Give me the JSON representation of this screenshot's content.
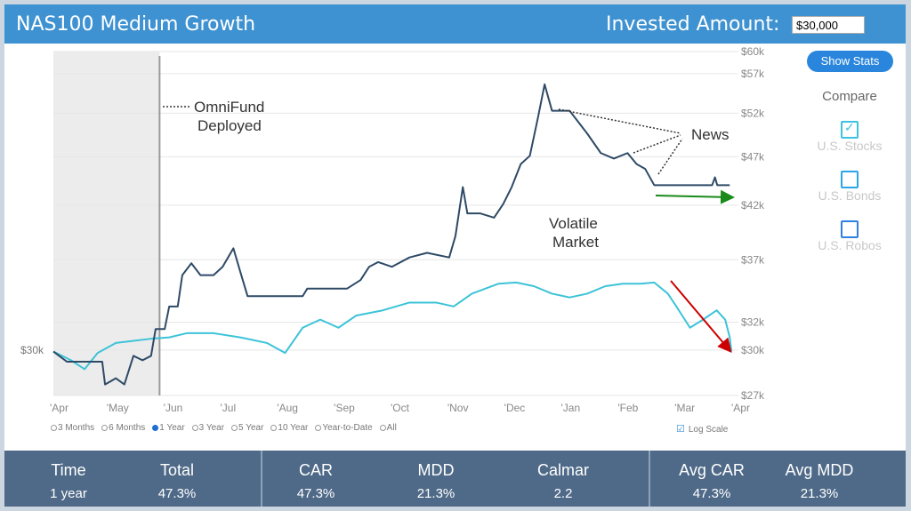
{
  "header": {
    "title": "NAS100 Medium Growth",
    "invested_label": "Invested Amount:",
    "invested_value": "$30,000"
  },
  "sidebar": {
    "show_stats": "Show Stats",
    "compare": "Compare",
    "options": [
      {
        "label": "U.S. Stocks",
        "checked": true,
        "color": "#3cc3e0"
      },
      {
        "label": "U.S. Bonds",
        "checked": false,
        "color": "#2aa7e6"
      },
      {
        "label": "U.S. Robos",
        "checked": false,
        "color": "#2f80e0"
      }
    ]
  },
  "ranges": [
    {
      "label": "3 Months",
      "selected": false
    },
    {
      "label": "6 Months",
      "selected": false
    },
    {
      "label": "1 Year",
      "selected": true
    },
    {
      "label": "3 Year",
      "selected": false
    },
    {
      "label": "5 Year",
      "selected": false
    },
    {
      "label": "10 Year",
      "selected": false
    },
    {
      "label": "Year-to-Date",
      "selected": false
    },
    {
      "label": "All",
      "selected": false
    }
  ],
  "log_scale": {
    "label": "Log Scale",
    "checked": true
  },
  "chart_data": {
    "type": "line",
    "scale": "log",
    "ylim": [
      27,
      60
    ],
    "x_ticks": [
      "'Apr",
      "'May",
      "'Jun",
      "'Jul",
      "'Aug",
      "'Sep",
      "'Oct",
      "'Nov",
      "'Dec",
      "'Jan",
      "'Feb",
      "'Mar",
      "'Apr"
    ],
    "y_ticks": [
      {
        "v": 60,
        "label": "$60k"
      },
      {
        "v": 57,
        "label": "$57k"
      },
      {
        "v": 52,
        "label": "$52k"
      },
      {
        "v": 47,
        "label": "$47k"
      },
      {
        "v": 42,
        "label": "$42k"
      },
      {
        "v": 37,
        "label": "$37k"
      },
      {
        "v": 32,
        "label": "$32k"
      },
      {
        "v": 30,
        "label": "$30k"
      },
      {
        "v": 27,
        "label": "$27k"
      }
    ],
    "start_label": "$30k",
    "deploy_month": 1.87,
    "series": [
      {
        "name": "NAS100 Medium Growth",
        "color": "#2e4a66",
        "points": [
          [
            0,
            29.9
          ],
          [
            0.24,
            29.2
          ],
          [
            0.86,
            29.2
          ],
          [
            0.91,
            27.7
          ],
          [
            1.1,
            28.1
          ],
          [
            1.25,
            27.7
          ],
          [
            1.41,
            29.6
          ],
          [
            1.57,
            29.3
          ],
          [
            1.72,
            29.6
          ],
          [
            1.8,
            31.5
          ],
          [
            1.96,
            31.5
          ],
          [
            2.04,
            33.2
          ],
          [
            2.19,
            33.2
          ],
          [
            2.27,
            35.7
          ],
          [
            2.43,
            36.7
          ],
          [
            2.59,
            35.7
          ],
          [
            2.82,
            35.7
          ],
          [
            2.98,
            36.4
          ],
          [
            3.17,
            38.0
          ],
          [
            3.29,
            36.0
          ],
          [
            3.42,
            34.0
          ],
          [
            4.39,
            34.0
          ],
          [
            4.47,
            34.6
          ],
          [
            5.17,
            34.6
          ],
          [
            5.41,
            35.3
          ],
          [
            5.56,
            36.4
          ],
          [
            5.72,
            36.8
          ],
          [
            5.96,
            36.4
          ],
          [
            6.27,
            37.2
          ],
          [
            6.58,
            37.6
          ],
          [
            6.97,
            37.2
          ],
          [
            7.08,
            39.1
          ],
          [
            7.21,
            43.8
          ],
          [
            7.29,
            41.2
          ],
          [
            7.52,
            41.2
          ],
          [
            7.76,
            40.8
          ],
          [
            7.92,
            42.1
          ],
          [
            8.07,
            43.8
          ],
          [
            8.23,
            46.2
          ],
          [
            8.39,
            47.1
          ],
          [
            8.54,
            51.7
          ],
          [
            8.65,
            55.6
          ],
          [
            8.78,
            52.3
          ],
          [
            9.09,
            52.3
          ],
          [
            9.4,
            49.6
          ],
          [
            9.64,
            47.4
          ],
          [
            9.87,
            46.8
          ],
          [
            10.11,
            47.4
          ],
          [
            10.27,
            46.2
          ],
          [
            10.42,
            45.7
          ],
          [
            10.58,
            44.0
          ],
          [
            11.6,
            44.0
          ],
          [
            11.65,
            44.8
          ],
          [
            11.69,
            44.0
          ],
          [
            11.91,
            44.0
          ]
        ]
      },
      {
        "name": "U.S. Stocks",
        "color": "#3cc3d8",
        "points": [
          [
            0,
            29.9
          ],
          [
            0.31,
            29.3
          ],
          [
            0.55,
            28.7
          ],
          [
            0.78,
            29.8
          ],
          [
            1.1,
            30.5
          ],
          [
            1.72,
            30.8
          ],
          [
            2.04,
            30.9
          ],
          [
            2.35,
            31.2
          ],
          [
            2.82,
            31.2
          ],
          [
            3.29,
            30.9
          ],
          [
            3.76,
            30.5
          ],
          [
            4.08,
            29.8
          ],
          [
            4.39,
            31.6
          ],
          [
            4.7,
            32.2
          ],
          [
            5.02,
            31.6
          ],
          [
            5.33,
            32.5
          ],
          [
            5.8,
            32.9
          ],
          [
            6.27,
            33.5
          ],
          [
            6.74,
            33.5
          ],
          [
            7.05,
            33.2
          ],
          [
            7.37,
            34.2
          ],
          [
            7.84,
            35.0
          ],
          [
            8.15,
            35.1
          ],
          [
            8.46,
            34.8
          ],
          [
            8.78,
            34.2
          ],
          [
            9.09,
            33.9
          ],
          [
            9.4,
            34.2
          ],
          [
            9.72,
            34.8
          ],
          [
            10.03,
            35.0
          ],
          [
            10.34,
            35.0
          ],
          [
            10.58,
            35.1
          ],
          [
            10.82,
            34.2
          ],
          [
            10.97,
            33.2
          ],
          [
            11.21,
            31.6
          ],
          [
            11.44,
            32.2
          ],
          [
            11.68,
            32.9
          ],
          [
            11.83,
            32.2
          ],
          [
            11.91,
            30.9
          ],
          [
            11.94,
            29.9
          ]
        ]
      }
    ],
    "annotations": {
      "deployed": [
        "OmniFund",
        "Deployed"
      ],
      "news": "News",
      "volatile": [
        "Volatile",
        "Market"
      ]
    }
  },
  "stats": [
    {
      "h": "Time",
      "v": "1 year"
    },
    {
      "h": "Total",
      "v": "47.3%"
    },
    {
      "h": "CAR",
      "v": "47.3%"
    },
    {
      "h": "MDD",
      "v": "21.3%"
    },
    {
      "h": "Calmar",
      "v": "2.2"
    },
    {
      "h": "Avg CAR",
      "v": "47.3%"
    },
    {
      "h": "Avg MDD",
      "v": "21.3%"
    }
  ]
}
